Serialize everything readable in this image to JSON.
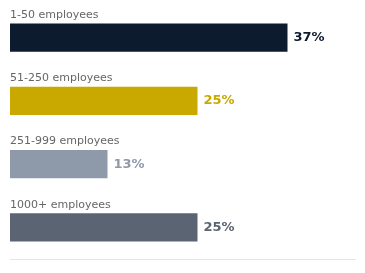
{
  "chart_data": {
    "type": "bar",
    "orientation": "horizontal",
    "categories": [
      "1-50 employees",
      "51-250 employees",
      "251-999 employees",
      "1000+ employees"
    ],
    "values": [
      37,
      25,
      13,
      25
    ],
    "value_labels": [
      "37%",
      "25%",
      "13%",
      "25%"
    ],
    "colors": [
      "#0d1b2e",
      "#c9a800",
      "#8e9aaa",
      "#5a6472"
    ],
    "xlim": [
      0,
      46
    ],
    "data_labels": true,
    "tick_labels": false,
    "grid": false
  }
}
